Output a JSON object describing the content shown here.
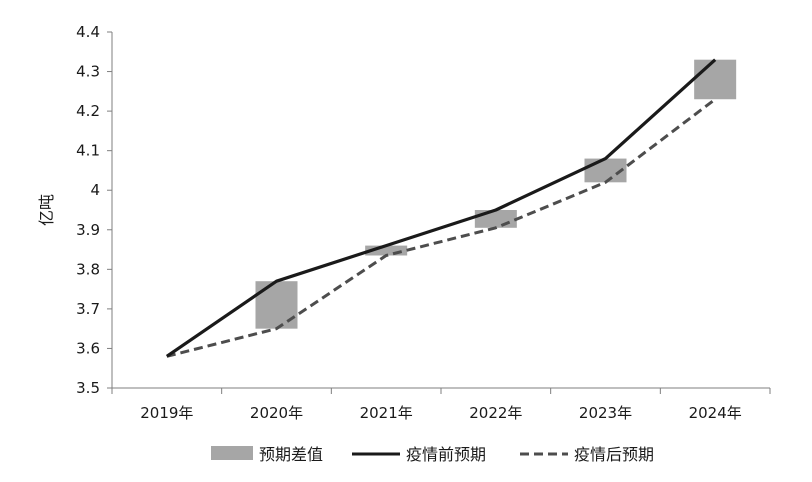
{
  "chart_data": {
    "type": "line",
    "categories": [
      "2019年",
      "2020年",
      "2021年",
      "2022年",
      "2023年",
      "2024年"
    ],
    "ylabel": "亿吨",
    "ylim": [
      3.5,
      4.4
    ],
    "yticks": [
      "3.5",
      "3.6",
      "3.7",
      "3.8",
      "3.9",
      "4",
      "4.1",
      "4.2",
      "4.3",
      "4.4"
    ],
    "grid": false,
    "legend_position": "bottom",
    "series": [
      {
        "name": "预期差值",
        "kind": "floating-bar",
        "color": "#a6a6a6",
        "low": [
          3.58,
          3.65,
          3.835,
          3.905,
          4.02,
          4.23
        ],
        "high": [
          3.58,
          3.77,
          3.86,
          3.95,
          4.08,
          4.33
        ]
      },
      {
        "name": "疫情前预期",
        "kind": "line",
        "style": "solid",
        "color": "#1a1a1a",
        "values": [
          3.58,
          3.77,
          3.86,
          3.95,
          4.08,
          4.33
        ]
      },
      {
        "name": "疫情后预期",
        "kind": "line",
        "style": "dashed",
        "color": "#4d4d4d",
        "values": [
          3.58,
          3.65,
          3.835,
          3.905,
          4.02,
          4.23
        ]
      }
    ]
  }
}
